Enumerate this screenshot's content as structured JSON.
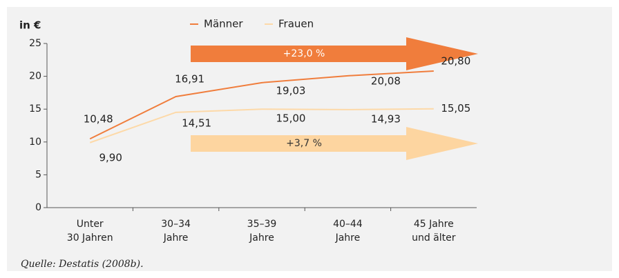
{
  "chart_data": {
    "type": "line",
    "y_label": "in €",
    "categories": [
      "Unter\n30 Jahren",
      "30–34\nJahre",
      "35–39\nJahre",
      "40–44\nJahre",
      "45 Jahre\nund älter"
    ],
    "series": [
      {
        "name": "Männer",
        "color": "#f07d3c",
        "values": [
          10.48,
          16.91,
          19.03,
          20.08,
          20.8
        ],
        "value_labels": [
          "10,48",
          "16,91",
          "19,03",
          "20,08",
          "20,80"
        ]
      },
      {
        "name": "Frauen",
        "color": "#fdd9a8",
        "values": [
          9.9,
          14.51,
          15.0,
          14.93,
          15.05
        ],
        "value_labels": [
          "9,90",
          "14,51",
          "15,00",
          "14,93",
          "15,05"
        ]
      }
    ],
    "annotations": [
      "+23,0 %",
      "+3,7 %"
    ],
    "ylim": [
      0,
      25
    ],
    "yticks": [
      0,
      5,
      10,
      15,
      20,
      25
    ],
    "source": "Quelle: Destatis (2008b)."
  }
}
